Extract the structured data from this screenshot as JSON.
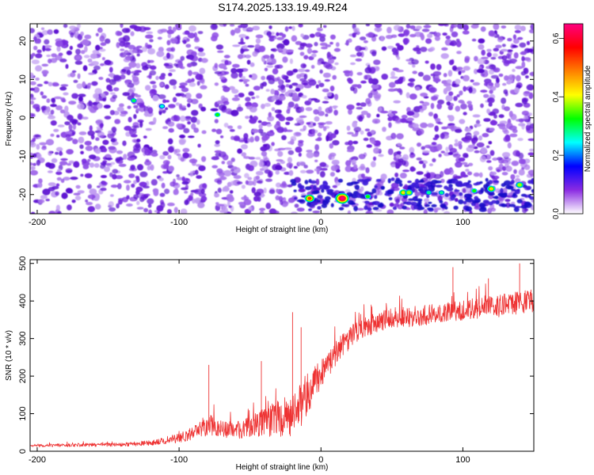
{
  "title": "S174.2025.133.19.49.R24",
  "chart_data": [
    {
      "type": "heatmap",
      "xlabel": "Height of straight line (km)",
      "ylabel": "Frequency (Hz)",
      "xlim": [
        -205,
        150
      ],
      "ylim": [
        -25,
        24.5
      ],
      "xticks": [
        -200,
        -100,
        0,
        100
      ],
      "yticks": [
        -20,
        -10,
        0,
        10,
        20
      ],
      "colorbar": {
        "label": "Normalized spectral amplitude",
        "range": [
          0,
          0.65
        ],
        "ticks": [
          0.0,
          0.2,
          0.4,
          0.6
        ],
        "tick_labels": [
          "0.0",
          "0.2",
          "0.4",
          "0.6"
        ],
        "colormap": [
          "#ffffff",
          "#8a2be2",
          "#0000ff",
          "#00ffff",
          "#00ff00",
          "#ffff00",
          "#ff8000",
          "#ff0000",
          "#ff0080"
        ]
      },
      "hotspots": [
        {
          "x": -132,
          "y": 4.5,
          "v": 0.22
        },
        {
          "x": -112,
          "y": 3,
          "v": 0.18
        },
        {
          "x": -73,
          "y": 0.8,
          "v": 0.25
        },
        {
          "x": -8,
          "y": -21,
          "v": 0.45
        },
        {
          "x": 15,
          "y": -21,
          "v": 0.62
        },
        {
          "x": 33,
          "y": -20.5,
          "v": 0.25
        },
        {
          "x": 58,
          "y": -19.5,
          "v": 0.35
        },
        {
          "x": 62,
          "y": -19.5,
          "v": 0.3
        },
        {
          "x": 76,
          "y": -19.5,
          "v": 0.2
        },
        {
          "x": 85,
          "y": -19.5,
          "v": 0.2
        },
        {
          "x": 108,
          "y": -19,
          "v": 0.25
        },
        {
          "x": 120,
          "y": -18.5,
          "v": 0.35
        },
        {
          "x": 140,
          "y": -17.5,
          "v": 0.3
        }
      ],
      "low_amplitude_gaps_x": [
        [
          -82,
          -76
        ],
        [
          12,
          18
        ],
        [
          45,
          48
        ]
      ]
    },
    {
      "type": "line",
      "xlabel": "Height of straight line (km)",
      "ylabel": "SNR (10 * v/v)",
      "xlim": [
        -205,
        150
      ],
      "ylim": [
        0,
        510
      ],
      "xticks": [
        -200,
        -100,
        0,
        100
      ],
      "yticks": [
        0,
        100,
        200,
        300,
        400,
        500
      ],
      "color": "#ee3333",
      "envelope": {
        "x": [
          -205,
          -140,
          -120,
          -100,
          -90,
          -80,
          -70,
          -60,
          -50,
          -40,
          -30,
          -20,
          -15,
          -10,
          -5,
          0,
          10,
          20,
          30,
          50,
          70,
          100,
          120,
          150
        ],
        "median": [
          15,
          18,
          22,
          35,
          50,
          70,
          60,
          55,
          65,
          80,
          90,
          100,
          120,
          150,
          180,
          210,
          260,
          300,
          330,
          355,
          360,
          375,
          385,
          400
        ],
        "spread": [
          8,
          10,
          14,
          25,
          40,
          60,
          45,
          45,
          60,
          80,
          110,
          120,
          130,
          110,
          100,
          80,
          70,
          60,
          55,
          55,
          55,
          55,
          60,
          65
        ]
      },
      "spikes": [
        {
          "x": -79,
          "y": 230
        },
        {
          "x": -42,
          "y": 240
        },
        {
          "x": -20,
          "y": 370
        },
        {
          "x": -14,
          "y": 330
        },
        {
          "x": 93,
          "y": 490
        },
        {
          "x": 118,
          "y": 460
        },
        {
          "x": 140,
          "y": 500
        }
      ]
    }
  ]
}
